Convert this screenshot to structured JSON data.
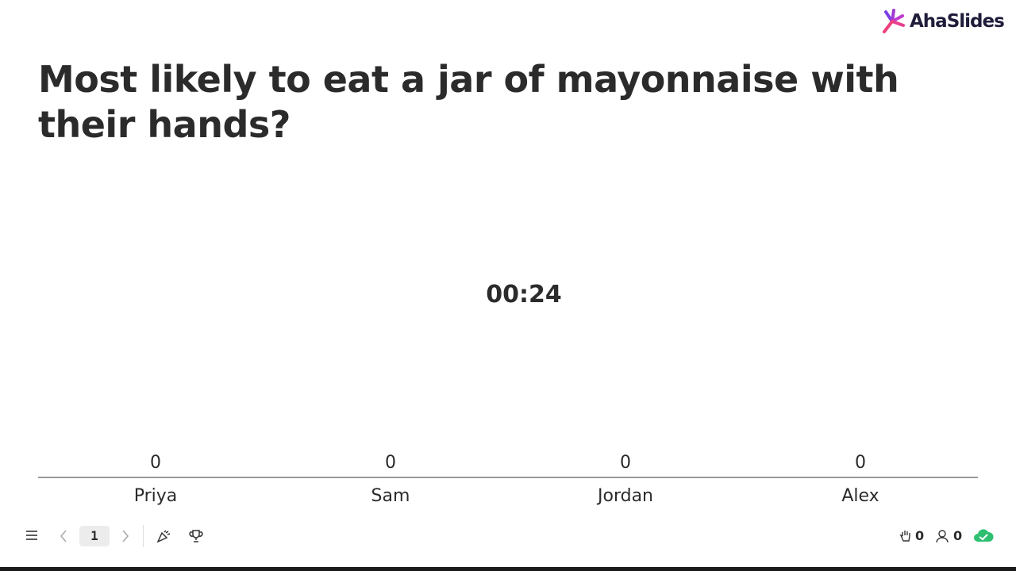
{
  "brand": "AhaSlides",
  "question": "Most likely to eat a jar of mayonnaise with their hands?",
  "timer": "00:24",
  "chart": {
    "type": "bar",
    "categories": [
      "Priya",
      "Sam",
      "Jordan",
      "Alex"
    ],
    "values": [
      0,
      0,
      0,
      0
    ]
  },
  "footer": {
    "page": "1",
    "raised_hands": 0,
    "participants": 0
  }
}
